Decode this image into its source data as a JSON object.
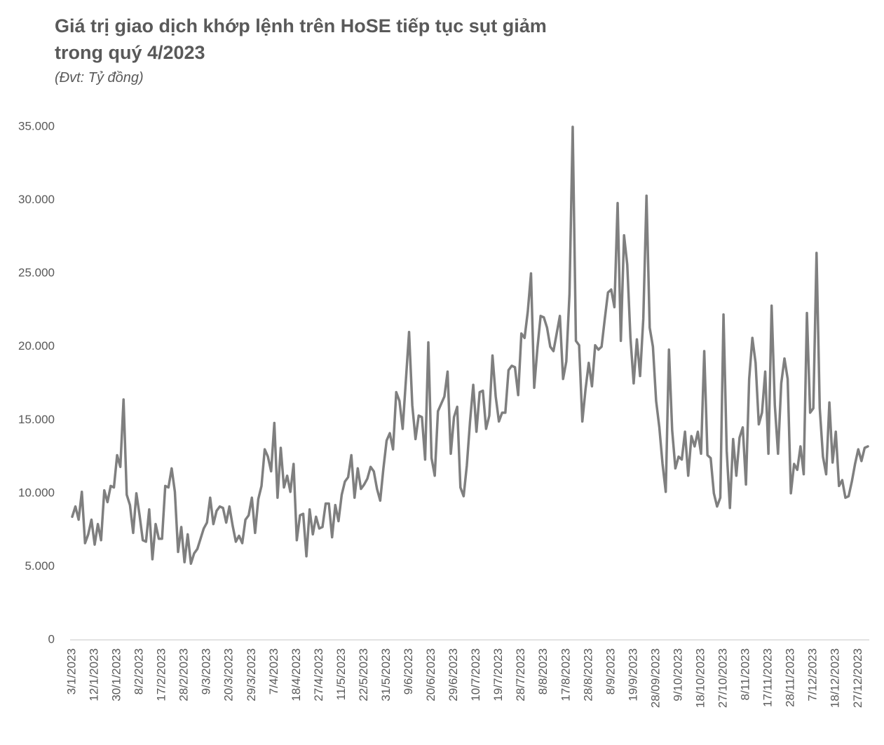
{
  "chart_data": {
    "type": "line",
    "title": "Giá trị giao dịch khớp lệnh trên HoSE tiếp tục sụt giảm trong quý 4/2023",
    "subtitle": "(Đvt: Tỷ đồng)",
    "color": "#7f7f7f",
    "categories": [
      "3/1/2023",
      null,
      null,
      null,
      null,
      null,
      null,
      "12/1/2023",
      null,
      null,
      null,
      null,
      null,
      null,
      "30/1/2023",
      null,
      null,
      null,
      null,
      null,
      null,
      "8/2/2023",
      null,
      null,
      null,
      null,
      null,
      null,
      "17/2/2023",
      null,
      null,
      null,
      null,
      null,
      null,
      "28/2/2023",
      null,
      null,
      null,
      null,
      null,
      null,
      "9/3/2023",
      null,
      null,
      null,
      null,
      null,
      null,
      "20/3/2023",
      null,
      null,
      null,
      null,
      null,
      null,
      "29/3/2023",
      null,
      null,
      null,
      null,
      null,
      null,
      "7/4/2023",
      null,
      null,
      null,
      null,
      null,
      null,
      "18/4/2023",
      null,
      null,
      null,
      null,
      null,
      null,
      "27/4/2023",
      null,
      null,
      null,
      null,
      null,
      null,
      "11/5/2023",
      null,
      null,
      null,
      null,
      null,
      null,
      "22/5/2023",
      null,
      null,
      null,
      null,
      null,
      null,
      "31/5/2023",
      null,
      null,
      null,
      null,
      null,
      null,
      "9/6/2023",
      null,
      null,
      null,
      null,
      null,
      null,
      "20/6/2023",
      null,
      null,
      null,
      null,
      null,
      null,
      "29/6/2023",
      null,
      null,
      null,
      null,
      null,
      null,
      "10/7/2023",
      null,
      null,
      null,
      null,
      null,
      null,
      "19/7/2023",
      null,
      null,
      null,
      null,
      null,
      null,
      "28/7/2023",
      null,
      null,
      null,
      null,
      null,
      null,
      "8/8/2023",
      null,
      null,
      null,
      null,
      null,
      null,
      "17/8/2023",
      null,
      null,
      null,
      null,
      null,
      null,
      "28/8/2023",
      null,
      null,
      null,
      null,
      null,
      null,
      "8/9/2023",
      null,
      null,
      null,
      null,
      null,
      null,
      "19/9/2023",
      null,
      null,
      null,
      null,
      null,
      null,
      "28/09/2023",
      null,
      null,
      null,
      null,
      null,
      null,
      "9/10/2023",
      null,
      null,
      null,
      null,
      null,
      null,
      "18/10/2023",
      null,
      null,
      null,
      null,
      null,
      null,
      "27/10/2023",
      null,
      null,
      null,
      null,
      null,
      null,
      "8/11/2023",
      null,
      null,
      null,
      null,
      null,
      null,
      "17/11/2023",
      null,
      null,
      null,
      null,
      null,
      null,
      "28/11/2023",
      null,
      null,
      null,
      null,
      null,
      null,
      "7/12/2023",
      null,
      null,
      null,
      null,
      null,
      null,
      "18/12/2023",
      null,
      null,
      null,
      null,
      null,
      null,
      "27/12/2023",
      null,
      null,
      null
    ],
    "values": [
      8400,
      9100,
      8200,
      10100,
      6600,
      7200,
      8200,
      6500,
      7900,
      6800,
      10200,
      9400,
      10500,
      10400,
      12600,
      11800,
      16400,
      9900,
      9200,
      7300,
      10000,
      8500,
      6800,
      6700,
      8900,
      5500,
      7900,
      6900,
      6900,
      10500,
      10400,
      11700,
      10100,
      6000,
      7700,
      5300,
      7200,
      5200,
      5900,
      6200,
      6900,
      7600,
      8000,
      9700,
      7900,
      8800,
      9100,
      9000,
      8000,
      9100,
      7800,
      6700,
      7100,
      6600,
      8200,
      8500,
      9700,
      7300,
      9600,
      10500,
      13000,
      12500,
      11500,
      14800,
      9700,
      13100,
      10400,
      11200,
      10100,
      12000,
      6800,
      8500,
      8600,
      5700,
      8900,
      7200,
      8400,
      7600,
      7700,
      9300,
      9300,
      7000,
      9200,
      8100,
      9900,
      10800,
      11100,
      12600,
      9700,
      11700,
      10300,
      10600,
      11000,
      11800,
      11500,
      10300,
      9500,
      11700,
      13600,
      14100,
      13000,
      16900,
      16300,
      14400,
      17700,
      21000,
      16000,
      13700,
      15300,
      15200,
      12300,
      20300,
      12400,
      11200,
      15600,
      16100,
      16600,
      18300,
      12700,
      15200,
      15900,
      10400,
      9800,
      11900,
      14900,
      17400,
      14200,
      16900,
      17000,
      14400,
      15300,
      19400,
      16600,
      14900,
      15500,
      15500,
      18400,
      18700,
      18600,
      16700,
      20900,
      20600,
      22400,
      25000,
      17200,
      19900,
      22100,
      22000,
      21300,
      20000,
      19700,
      20900,
      22100,
      17800,
      19000,
      23600,
      35000,
      20400,
      20100,
      14900,
      17100,
      18900,
      17300,
      20100,
      19800,
      20000,
      21900,
      23700,
      23900,
      22700,
      29800,
      20400,
      27600,
      25600,
      20600,
      17500,
      20500,
      18000,
      21900,
      30300,
      21300,
      20000,
      16300,
      14500,
      12000,
      10100,
      19800,
      14300,
      11700,
      12500,
      12300,
      14200,
      11200,
      13900,
      13200,
      14200,
      12700,
      19700,
      12600,
      12400,
      10000,
      9100,
      9700,
      22200,
      12900,
      9000,
      13700,
      11200,
      13800,
      14500,
      10600,
      17800,
      20600,
      18900,
      14700,
      15500,
      18300,
      12700,
      22800,
      16000,
      12700,
      17500,
      19200,
      17800,
      10000,
      12000,
      11600,
      13200,
      11300,
      22300,
      15500,
      15800,
      26400,
      15800,
      12500,
      11300,
      16200,
      12100,
      14200,
      10500,
      10900,
      9700,
      9800,
      10800,
      12000,
      13000,
      12200,
      13100,
      13200
    ],
    "ylim": [
      0,
      35000
    ],
    "yticks": [
      0,
      {
        "value": 5000,
        "label": "5.000"
      },
      {
        "value": 10000,
        "label": "10.000"
      },
      {
        "value": 15000,
        "label": "15.000"
      },
      {
        "value": 20000,
        "label": "20.000"
      },
      {
        "value": 25000,
        "label": "25.000"
      },
      {
        "value": 30000,
        "label": "30.000"
      },
      {
        "value": 35000,
        "label": "35.000"
      }
    ],
    "grid": false
  }
}
